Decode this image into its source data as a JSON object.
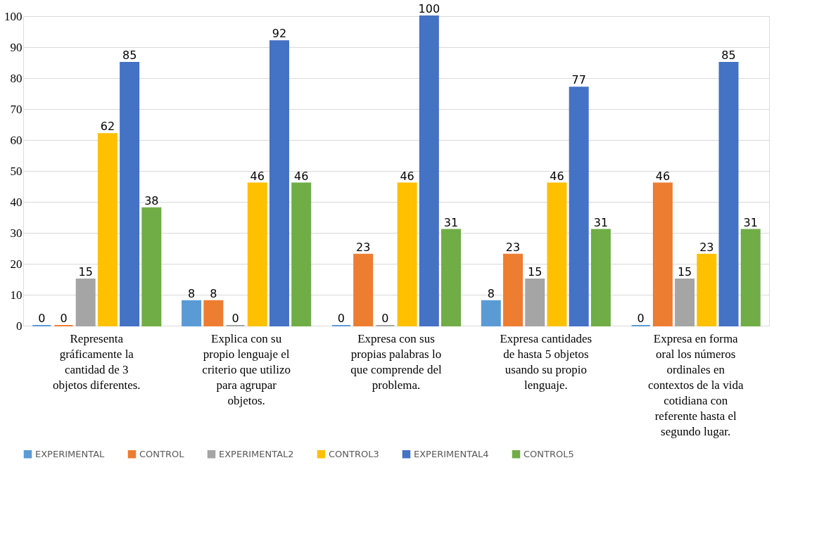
{
  "chart_data": {
    "type": "bar",
    "categories": [
      "Representa gráficamente la cantidad de 3 objetos diferentes.",
      "Explica con su propio lenguaje el criterio que utilizo para agrupar objetos.",
      "Expresa con sus propias palabras lo que comprende del problema.",
      "Expresa cantidades de hasta 5 objetos usando su propio lenguaje.",
      "Expresa en forma oral los números ordinales en contextos de la vida cotidiana con referente hasta el segundo lugar."
    ],
    "series": [
      {
        "name": "EXPERIMENTAL",
        "color": "#5b9bd5",
        "values": [
          0,
          8,
          0,
          8,
          0
        ]
      },
      {
        "name": "CONTROL",
        "color": "#ed7d31",
        "values": [
          0,
          8,
          23,
          23,
          46
        ]
      },
      {
        "name": "EXPERIMENTAL2",
        "color": "#a5a5a5",
        "values": [
          15,
          0,
          0,
          15,
          15
        ]
      },
      {
        "name": "CONTROL3",
        "color": "#ffc000",
        "values": [
          62,
          46,
          46,
          46,
          23
        ]
      },
      {
        "name": "EXPERIMENTAL4",
        "color": "#4472c4",
        "values": [
          85,
          92,
          100,
          77,
          85
        ]
      },
      {
        "name": "CONTROL5",
        "color": "#70ad47",
        "values": [
          38,
          46,
          31,
          31,
          31
        ]
      }
    ],
    "ylim": [
      0,
      100
    ],
    "yticks": [
      0,
      10,
      20,
      30,
      40,
      50,
      60,
      70,
      80,
      90,
      100
    ],
    "grid": "y",
    "legend": "bottom",
    "data_labels": true
  }
}
